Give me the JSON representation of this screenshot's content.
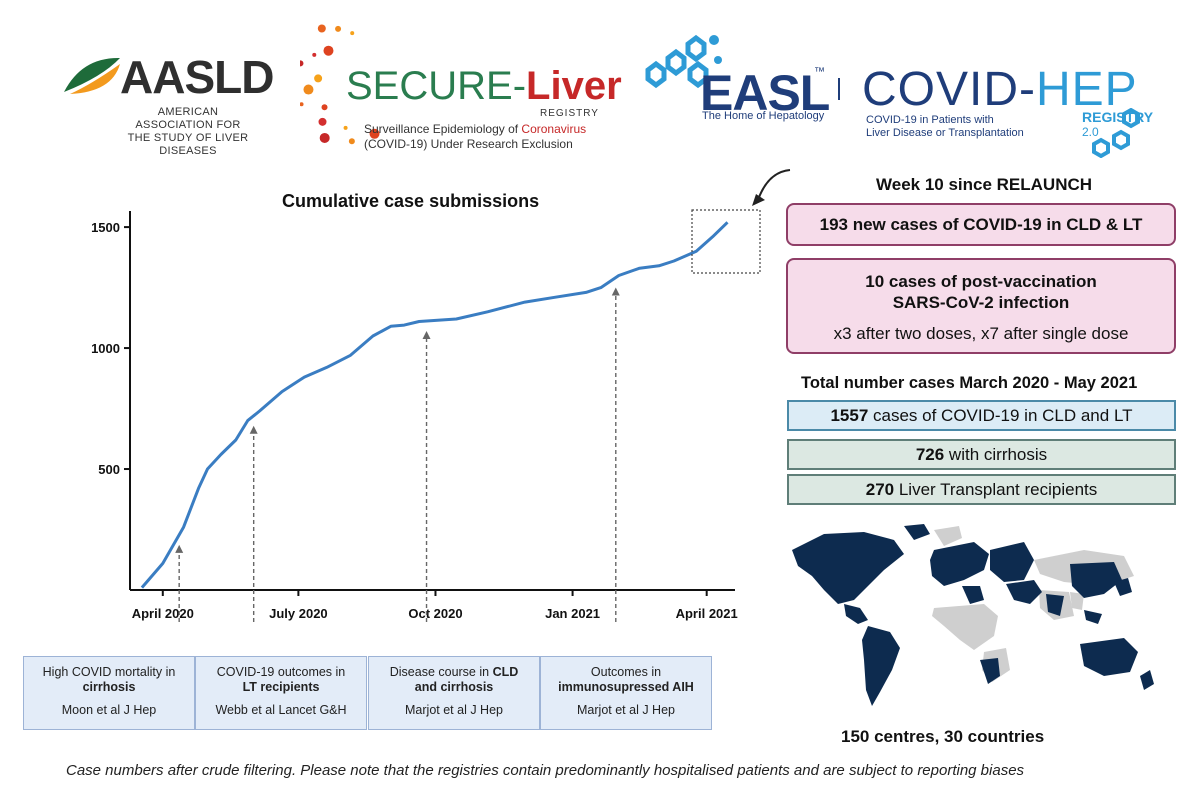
{
  "logos": {
    "aasld": {
      "name": "AASLD",
      "sub": [
        "AMERICAN ASSOCIATION FOR",
        "THE STUDY OF LIVER DISEASES"
      ]
    },
    "secure": {
      "part1": "SECURE-",
      "part2": "Liver",
      "registry": "REGISTRY",
      "desc_a": "Surveillance Epidemiology of ",
      "desc_red": "Coronavirus",
      "desc_b": "(COVID-19) Under Research Exclusion"
    },
    "easl": {
      "name": "EASL",
      "tm": "™",
      "sub": "The Home of Hepatology"
    },
    "covidhep": {
      "part1": "COVID-",
      "part2": "HEP",
      "sub": [
        "COVID-19 in Patients with",
        "Liver Disease or Transplantation"
      ],
      "registry": "REGISTRY",
      "version": "2.0"
    }
  },
  "chart_data": {
    "type": "line",
    "title": "Cumulative case submissions",
    "xlabel": "",
    "ylabel": "",
    "y_ticks": [
      500,
      1000,
      1500
    ],
    "ylim": [
      0,
      1550
    ],
    "x_ticks": [
      "April 2020",
      "July 2020",
      "Oct 2020",
      "Jan 2021",
      "April 2021"
    ],
    "x_tick_dates": [
      "2020-04-01",
      "2020-07-01",
      "2020-10-01",
      "2021-01-01",
      "2021-04-01"
    ],
    "xlim": [
      "2020-03-10",
      "2021-04-20"
    ],
    "color": "#3a7dc2",
    "series": [
      {
        "x": [
          "2020-03-18",
          "2020-04-01",
          "2020-04-15",
          "2020-04-25",
          "2020-05-01",
          "2020-05-10",
          "2020-05-20",
          "2020-05-28",
          "2020-06-05",
          "2020-06-20",
          "2020-07-05",
          "2020-07-20",
          "2020-08-05",
          "2020-08-20",
          "2020-09-01",
          "2020-09-10",
          "2020-09-20",
          "2020-10-15",
          "2020-11-05",
          "2020-11-30",
          "2020-12-20",
          "2021-01-10",
          "2021-01-20",
          "2021-02-01",
          "2021-02-15",
          "2021-02-28",
          "2021-03-10",
          "2021-03-25",
          "2021-04-05",
          "2021-04-15"
        ],
        "y": [
          10,
          110,
          260,
          420,
          500,
          560,
          620,
          700,
          740,
          820,
          880,
          920,
          970,
          1050,
          1090,
          1095,
          1110,
          1120,
          1150,
          1190,
          1210,
          1230,
          1250,
          1300,
          1330,
          1340,
          1360,
          1400,
          1460,
          1520
        ]
      }
    ],
    "annotated_dates": [
      "2020-04-12",
      "2020-06-01",
      "2020-09-25",
      "2021-01-30"
    ]
  },
  "pubs": [
    {
      "line1": "High COVID mortality in",
      "bold": "cirrhosis",
      "ref": "Moon et al J Hep"
    },
    {
      "line1": "COVID-19 outcomes in",
      "bold": "LT recipients",
      "ref": "Webb et al Lancet G&H"
    },
    {
      "line1_a": "Disease course in ",
      "line1_b": "CLD",
      "bold": "and cirrhosis",
      "ref": "Marjot et al J Hep"
    },
    {
      "line1": "Outcomes in",
      "bold": "immunosupressed AIH",
      "ref": "Marjot et al J Hep"
    }
  ],
  "panel": {
    "week_title": "Week 10 since RELAUNCH",
    "new_cases": "193 new cases of COVID-19 in CLD & LT",
    "vacc_title_1": "10 cases of post-vaccination",
    "vacc_title_2": "SARS-CoV-2 infection",
    "vacc_detail": "x3 after two doses,  x7 after single dose",
    "total_title": "Total number cases March 2020 - May 2021",
    "stats": [
      {
        "num": "1557",
        "text": " cases of COVID-19 in CLD and LT",
        "bg": "#dcecf6",
        "border": "#4b8aa8"
      },
      {
        "num": "726",
        "text": " with cirrhosis",
        "bg": "#dce8e2",
        "border": "#5f7e78"
      },
      {
        "num": "270",
        "text": " Liver Transplant recipients",
        "bg": "#dce8e2",
        "border": "#5f7e78"
      }
    ],
    "map_caption": "150 centres, 30 countries"
  },
  "colors": {
    "map_active": "#0d2b4f",
    "map_inactive": "#cfcfcf",
    "pink_bg": "#f6dcea",
    "pink_border": "#8f3e67"
  },
  "footer": "Case numbers after crude filtering. Please note that the registries contain predominantly hospitalised patients and are subject to reporting biases"
}
